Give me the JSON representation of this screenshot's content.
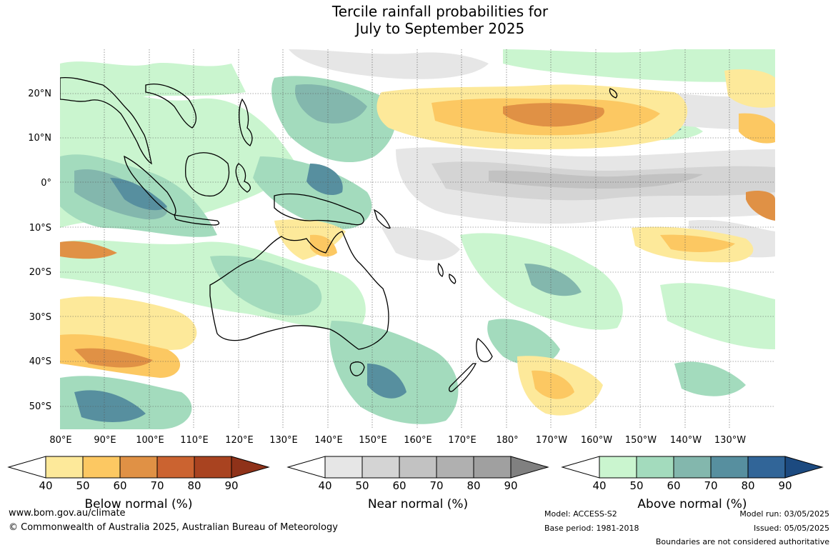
{
  "title_line1": "Tercile rainfall probabilities for",
  "title_line2": "July to September 2025",
  "map": {
    "type": "contour-map",
    "region": "Australia and Pacific",
    "latitude_labels": [
      "20°N",
      "10°N",
      "0°",
      "10°S",
      "20°S",
      "30°S",
      "40°S",
      "50°S"
    ],
    "longitude_labels": [
      "80°E",
      "90°E",
      "100°E",
      "110°E",
      "120°E",
      "130°E",
      "140°E",
      "150°E",
      "160°E",
      "170°E",
      "180°",
      "170°W",
      "160°W",
      "150°W",
      "140°W",
      "130°W"
    ],
    "gridlines": true
  },
  "colorbars": [
    {
      "label": "Below normal (%)",
      "ticks": [
        "40",
        "50",
        "60",
        "70",
        "80",
        "90"
      ],
      "colors": [
        "#ffffff",
        "#fde99a",
        "#fcc862",
        "#e09145",
        "#cb6330",
        "#a94320",
        "#8f3219"
      ]
    },
    {
      "label": "Near normal (%)",
      "ticks": [
        "40",
        "50",
        "60",
        "70",
        "80",
        "90"
      ],
      "colors": [
        "#ffffff",
        "#e6e6e6",
        "#d4d4d4",
        "#c2c2c2",
        "#b0b0b0",
        "#a0a0a0",
        "#808080"
      ]
    },
    {
      "label": "Above normal (%)",
      "ticks": [
        "40",
        "50",
        "60",
        "70",
        "80",
        "90"
      ],
      "colors": [
        "#ffffff",
        "#caf5cf",
        "#a3dbbd",
        "#83b7ad",
        "#578f9f",
        "#316598",
        "#1c4a80"
      ]
    }
  ],
  "footer": {
    "website": "www.bom.gov.au/climate",
    "copyright": "© Commonwealth of Australia 2025, Australian Bureau of Meteorology",
    "model": "Model: ACCESS-S2",
    "base_period": "Base period: 1981-2018",
    "model_run": "Model run: 03/05/2025",
    "issued": "Issued: 05/05/2025",
    "disclaimer": "Boundaries are not considered authoritative"
  }
}
